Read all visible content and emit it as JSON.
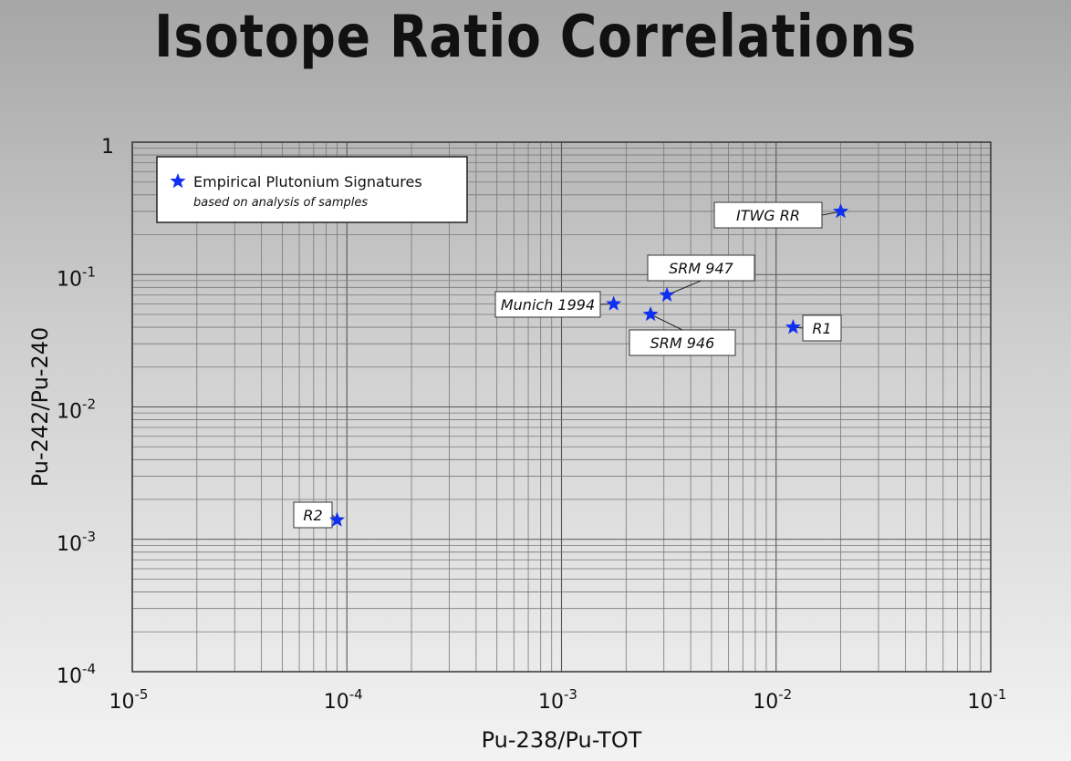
{
  "chart_data": {
    "type": "scatter",
    "title": "Isotope Ratio Correlations",
    "xlabel": "Pu-238/Pu-TOT",
    "ylabel": "Pu-242/Pu-240",
    "x_scale": "log",
    "y_scale": "log",
    "xlim": [
      1e-05,
      0.1
    ],
    "ylim": [
      0.0001,
      1
    ],
    "x_ticks": [
      {
        "base": "10",
        "exp": "-5"
      },
      {
        "base": "10",
        "exp": "-4"
      },
      {
        "base": "10",
        "exp": "-3"
      },
      {
        "base": "10",
        "exp": "-2"
      },
      {
        "base": "10",
        "exp": "-1"
      }
    ],
    "y_ticks": [
      {
        "base": "10",
        "exp": "-4"
      },
      {
        "base": "10",
        "exp": "-3"
      },
      {
        "base": "10",
        "exp": "-2"
      },
      {
        "base": "10",
        "exp": "-1"
      },
      {
        "base": "1",
        "exp": ""
      }
    ],
    "grid": true,
    "legend": {
      "position": "top-left",
      "title": "Empirical Plutonium Signatures",
      "subtitle": "based on analysis of samples"
    },
    "marker_color": "#1030f0",
    "points": [
      {
        "label": "ITWG RR",
        "x": 0.02,
        "y": 0.3
      },
      {
        "label": "SRM 947",
        "x": 0.0031,
        "y": 0.07
      },
      {
        "label": "Munich 1994",
        "x": 0.00175,
        "y": 0.06
      },
      {
        "label": "SRM 946",
        "x": 0.0026,
        "y": 0.05
      },
      {
        "label": "R1",
        "x": 0.012,
        "y": 0.04
      },
      {
        "label": "R2",
        "x": 9e-05,
        "y": 0.0014
      }
    ]
  }
}
